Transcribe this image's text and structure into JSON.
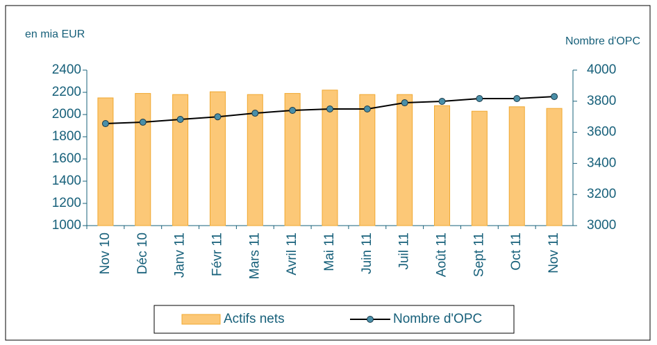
{
  "chart_data": {
    "type": "bar",
    "y_label": "en mia EUR",
    "y2_label": "Nombre d'OPC",
    "categories": [
      "Nov 10",
      "Déc 10",
      "Janv 11",
      "Févr 11",
      "Mars 11",
      "Avril 11",
      "Mai 11",
      "Juin 11",
      "Juil 11",
      "Août 11",
      "Sept 11",
      "Oct 11",
      "Nov 11"
    ],
    "series": [
      {
        "name": "Actifs nets",
        "type": "bar",
        "color": "#fcc877",
        "edge": "#f0a830",
        "values": [
          2150,
          2190,
          2180,
          2205,
          2180,
          2190,
          2220,
          2180,
          2180,
          2080,
          2030,
          2070,
          2055
        ]
      },
      {
        "name": "Nombre d'OPC",
        "type": "line",
        "axis": "y2",
        "color": "#000000",
        "marker": "#4a8fa8",
        "values": [
          3656,
          3665,
          3683,
          3700,
          3723,
          3741,
          3750,
          3750,
          3790,
          3799,
          3817,
          3817,
          3830
        ]
      }
    ],
    "ylim": [
      1000,
      2400
    ],
    "yticks": [
      1000,
      1200,
      1400,
      1600,
      1800,
      2000,
      2200,
      2400
    ],
    "y2lim": [
      3000,
      4000
    ],
    "y2ticks": [
      3000,
      3200,
      3400,
      3600,
      3800,
      4000
    ],
    "grid": false,
    "legend": "bottom"
  }
}
